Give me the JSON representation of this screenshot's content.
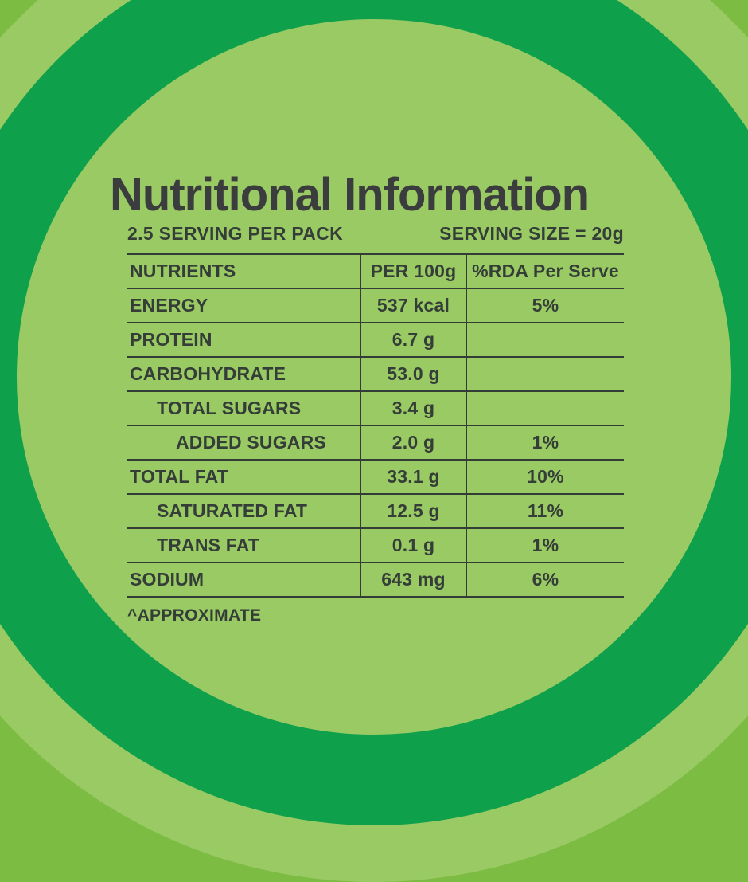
{
  "page": {
    "title": "Nutritional Information",
    "servings_per_pack": "2.5 SERVING PER PACK",
    "serving_size": "SERVING SIZE = 20g",
    "footnote": "^APPROXIMATE"
  },
  "colors": {
    "outer_background_green": "#7cbc43",
    "light_green": "#9aca64",
    "dark_ring_green": "#0fa04b",
    "text_dark": "#343d37"
  },
  "table": {
    "columns": [
      "NUTRIENTS",
      "PER 100g",
      "%RDA Per Serve"
    ],
    "rows": [
      {
        "nutrient": "ENERGY",
        "per_100g": "537 kcal",
        "rda_per_serve": "5%"
      },
      {
        "nutrient": "PROTEIN",
        "per_100g": "6.7 g",
        "rda_per_serve": ""
      },
      {
        "nutrient": "CARBOHYDRATE",
        "per_100g": "53.0 g",
        "rda_per_serve": ""
      },
      {
        "nutrient": "TOTAL SUGARS",
        "per_100g": "3.4 g",
        "rda_per_serve": ""
      },
      {
        "nutrient": "ADDED SUGARS",
        "per_100g": "2.0 g",
        "rda_per_serve": "1%"
      },
      {
        "nutrient": "TOTAL FAT",
        "per_100g": "33.1 g",
        "rda_per_serve": "10%"
      },
      {
        "nutrient": "SATURATED FAT",
        "per_100g": "12.5 g",
        "rda_per_serve": "11%"
      },
      {
        "nutrient": "TRANS FAT",
        "per_100g": "0.1 g",
        "rda_per_serve": "1%"
      },
      {
        "nutrient": "SODIUM",
        "per_100g": "643 mg",
        "rda_per_serve": "6%"
      }
    ]
  }
}
